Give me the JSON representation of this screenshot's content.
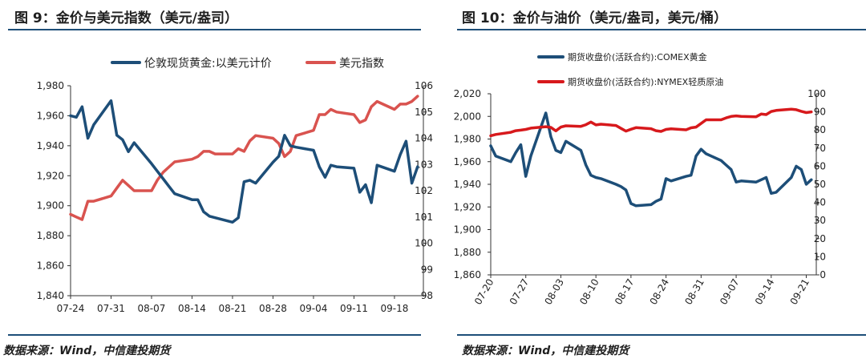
{
  "chart_data": [
    {
      "type": "line",
      "title": "图 9：金价与美元指数（美元/盎司）",
      "source": "数据来源：Wind，中信建投期货",
      "x_ticks": [
        "07-24",
        "07-31",
        "08-07",
        "08-14",
        "08-21",
        "08-28",
        "09-04",
        "09-11",
        "09-18"
      ],
      "y_left": {
        "ticks": [
          "1,840",
          "1,860",
          "1,880",
          "1,900",
          "1,920",
          "1,940",
          "1,960",
          "1,980"
        ],
        "range": [
          1840,
          1980
        ]
      },
      "y_right": {
        "ticks": [
          "98",
          "99",
          "100",
          "101",
          "102",
          "103",
          "104",
          "105",
          "106"
        ],
        "range": [
          98,
          106
        ]
      },
      "legend_position": "top",
      "series": [
        {
          "name": "伦敦现货黄金:以美元计价",
          "color": "#1d4e78",
          "axis": "left",
          "x": [
            "07-24",
            "07-25",
            "07-26",
            "07-27",
            "07-28",
            "07-31",
            "08-01",
            "08-02",
            "08-03",
            "08-04",
            "08-07",
            "08-08",
            "08-09",
            "08-10",
            "08-11",
            "08-14",
            "08-15",
            "08-16",
            "08-17",
            "08-18",
            "08-21",
            "08-22",
            "08-23",
            "08-24",
            "08-25",
            "08-28",
            "08-29",
            "08-30",
            "08-31",
            "09-01",
            "09-04",
            "09-05",
            "09-06",
            "09-07",
            "09-08",
            "09-11",
            "09-12",
            "09-13",
            "09-14",
            "09-15",
            "09-18",
            "09-19",
            "09-20",
            "09-21",
            "09-22"
          ],
          "values": [
            1960,
            1959,
            1966,
            1945,
            1954,
            1970,
            1947,
            1944,
            1936,
            1942,
            1928,
            1923,
            1918,
            1913,
            1908,
            1904,
            1904,
            1896,
            1893,
            1892,
            1889,
            1892,
            1916,
            1917,
            1915,
            1929,
            1933,
            1947,
            1940,
            1939,
            1937,
            1926,
            1919,
            1927,
            1926,
            1925,
            1909,
            1914,
            1902,
            1927,
            1923,
            1934,
            1943,
            1915,
            1926
          ]
        },
        {
          "name": "美元指数",
          "color": "#d9534f",
          "axis": "right",
          "x": [
            "07-24",
            "07-25",
            "07-26",
            "07-27",
            "07-28",
            "07-31",
            "08-01",
            "08-02",
            "08-03",
            "08-04",
            "08-07",
            "08-08",
            "08-09",
            "08-10",
            "08-11",
            "08-14",
            "08-15",
            "08-16",
            "08-17",
            "08-18",
            "08-21",
            "08-22",
            "08-23",
            "08-24",
            "08-25",
            "08-28",
            "08-29",
            "08-30",
            "08-31",
            "09-01",
            "09-04",
            "09-05",
            "09-06",
            "09-07",
            "09-08",
            "09-11",
            "09-12",
            "09-13",
            "09-14",
            "09-15",
            "09-18",
            "09-19",
            "09-20",
            "09-21",
            "09-22"
          ],
          "values": [
            101.1,
            101.0,
            100.9,
            101.6,
            101.6,
            101.8,
            102.1,
            102.4,
            102.2,
            102.0,
            102.0,
            102.4,
            102.7,
            102.9,
            103.1,
            103.2,
            103.3,
            103.5,
            103.5,
            103.4,
            103.4,
            103.6,
            103.5,
            103.9,
            104.1,
            104.0,
            103.8,
            103.3,
            103.5,
            104.1,
            104.3,
            104.9,
            104.9,
            105.1,
            105.0,
            104.9,
            104.6,
            104.7,
            105.2,
            105.4,
            105.1,
            105.3,
            105.3,
            105.4,
            105.6
          ]
        }
      ]
    },
    {
      "type": "line",
      "title": "图 10：金价与油价（美元/盎司，美元/桶）",
      "source": "数据来源：Wind，中信建投期货",
      "x_ticks": [
        "07-20",
        "07-27",
        "08-03",
        "08-10",
        "08-17",
        "08-24",
        "08-31",
        "09-07",
        "09-14",
        "09-21"
      ],
      "y_left": {
        "ticks": [
          "1,860",
          "1,880",
          "1,900",
          "1,920",
          "1,940",
          "1,960",
          "1,980",
          "2,000",
          "2,020"
        ],
        "range": [
          1860,
          2020
        ]
      },
      "y_right": {
        "ticks": [
          "0",
          "10",
          "20",
          "30",
          "40",
          "50",
          "60",
          "70",
          "80",
          "90",
          "100"
        ],
        "range": [
          0,
          100
        ]
      },
      "legend_position": "top",
      "series": [
        {
          "name": "期货收盘价(活跃合约):COMEX黄金",
          "color": "#1d4e78",
          "axis": "left",
          "x": [
            "07-20",
            "07-21",
            "07-24",
            "07-25",
            "07-26",
            "07-27",
            "07-28",
            "07-31",
            "08-01",
            "08-02",
            "08-03",
            "08-04",
            "08-07",
            "08-08",
            "08-09",
            "08-10",
            "08-11",
            "08-14",
            "08-15",
            "08-16",
            "08-17",
            "08-18",
            "08-21",
            "08-22",
            "08-23",
            "08-24",
            "08-25",
            "08-28",
            "08-29",
            "08-30",
            "08-31",
            "09-01",
            "09-04",
            "09-05",
            "09-06",
            "09-07",
            "09-08",
            "09-11",
            "09-12",
            "09-13",
            "09-14",
            "09-15",
            "09-18",
            "09-19",
            "09-20",
            "09-21",
            "09-22"
          ],
          "values": [
            1974,
            1965,
            1960,
            1968,
            1975,
            1947,
            1965,
            2003,
            1982,
            1970,
            1968,
            1978,
            1970,
            1957,
            1948,
            1946,
            1945,
            1940,
            1938,
            1935,
            1923,
            1921,
            1922,
            1925,
            1927,
            1945,
            1943,
            1947,
            1948,
            1965,
            1971,
            1967,
            1961,
            1957,
            1953,
            1942,
            1943,
            1942,
            1944,
            1946,
            1932,
            1933,
            1946,
            1956,
            1953,
            1940,
            1944
          ]
        },
        {
          "name": "期货收盘价(活跃合约):NYMEX轻质原油",
          "color": "#d7191c",
          "axis": "right",
          "x": [
            "07-20",
            "07-21",
            "07-24",
            "07-25",
            "07-26",
            "07-27",
            "07-28",
            "07-31",
            "08-01",
            "08-02",
            "08-03",
            "08-04",
            "08-07",
            "08-08",
            "08-09",
            "08-10",
            "08-11",
            "08-14",
            "08-15",
            "08-16",
            "08-17",
            "08-18",
            "08-21",
            "08-22",
            "08-23",
            "08-24",
            "08-25",
            "08-28",
            "08-29",
            "08-30",
            "08-31",
            "09-01",
            "09-04",
            "09-05",
            "09-06",
            "09-07",
            "09-08",
            "09-11",
            "09-12",
            "09-13",
            "09-14",
            "09-15",
            "09-18",
            "09-19",
            "09-20",
            "09-21",
            "09-22"
          ],
          "values": [
            76.8,
            77.5,
            78.7,
            79.6,
            79.9,
            80.3,
            81.0,
            81.8,
            81.4,
            79.5,
            81.6,
            82.3,
            82.0,
            82.9,
            84.4,
            82.8,
            83.2,
            82.5,
            80.9,
            79.4,
            80.4,
            81.3,
            80.7,
            79.6,
            79.2,
            80.3,
            80.6,
            80.1,
            81.2,
            81.6,
            83.6,
            85.6,
            85.6,
            86.7,
            87.5,
            87.8,
            87.5,
            87.3,
            88.8,
            88.5,
            90.2,
            90.8,
            91.5,
            91.2,
            90.3,
            89.6,
            90.0
          ]
        }
      ]
    }
  ]
}
